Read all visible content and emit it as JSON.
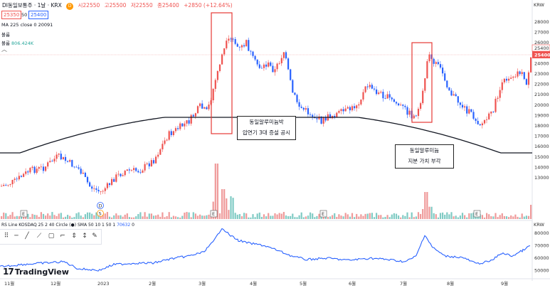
{
  "header": {
    "symbol": "DI동일보통주 · 1날 · KRX",
    "status_dot": "D",
    "ohlc": {
      "open": "시22550",
      "high": "고25500",
      "low": "저22550",
      "close": "종25400",
      "change": "+2850 (+12.64%)"
    },
    "bid": "25350",
    "spread": "50",
    "ask": "25400",
    "indicator_line": "MA 225 close 0",
    "ma_value": "20091",
    "row3": "볼륨",
    "row4_label": "볼륨",
    "row4_value": "806.424K"
  },
  "price_axis": {
    "currency": "KRW",
    "ticks": [
      "28000",
      "27000",
      "26000",
      "25000",
      "24000",
      "23000",
      "22000",
      "21000",
      "20000",
      "19000",
      "18000",
      "17000",
      "16000",
      "15000",
      "14000",
      "13000"
    ],
    "last_price": "25400",
    "last_price_2": "25400",
    "last_price_3": "25400"
  },
  "rs_axis": {
    "currency": "KRW",
    "ticks": [
      "80000",
      "70000",
      "60000",
      "50000"
    ]
  },
  "rs_legend": {
    "title": "RS Line KOSDAQ 25 2 40 Circle (●) SMA 50 10 1 50 1",
    "value": "70632",
    "extra": "0"
  },
  "time_axis": {
    "labels": [
      "11월",
      "12월",
      "2023",
      "2월",
      "3월",
      "4월",
      "5월",
      "6월",
      "7월",
      "8월",
      "9월"
    ]
  },
  "annotations": {
    "box1_line1": "동일알루미늄박",
    "box1_line2": "압연기 3대 증설 공시",
    "box2_line1": "동일알루미늄",
    "box2_line2": "지분 가치 부각"
  },
  "event_markers": {
    "earnings": "E",
    "dividend": "D",
    "split": "S"
  },
  "branding": {
    "logo_text": "TradingView"
  },
  "colors": {
    "up": "#ef5350",
    "down": "#2962ff",
    "vol_up": "#ef9a9a",
    "vol_down": "#80cbc4",
    "rs_line": "#2962ff",
    "ma": "#131722",
    "highlight": "#e53935"
  }
}
